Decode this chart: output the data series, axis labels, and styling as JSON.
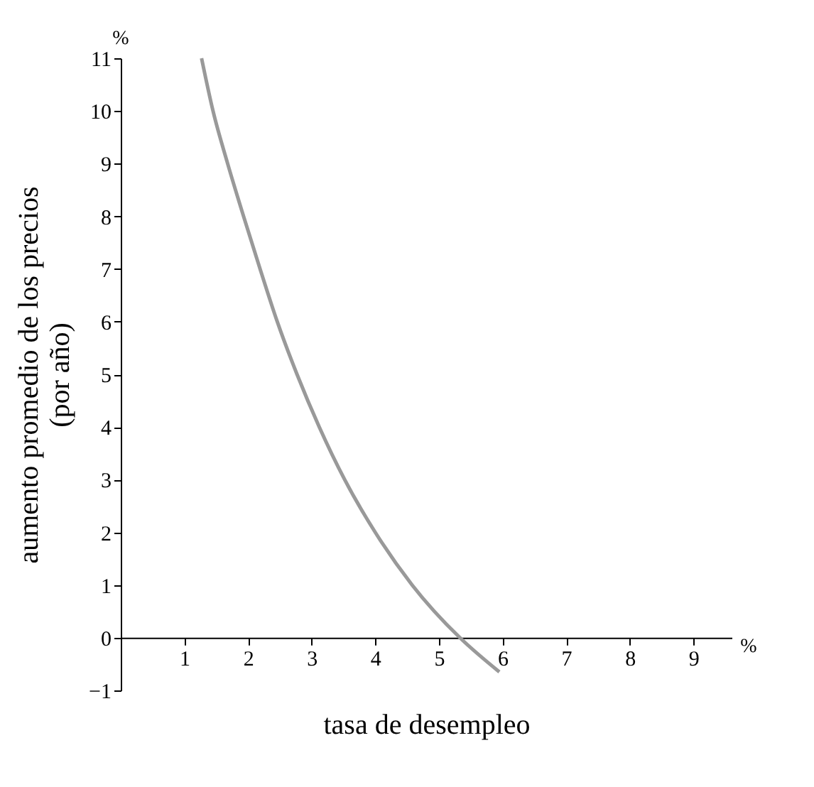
{
  "chart_data": {
    "type": "line",
    "xlabel": "tasa de desempleo",
    "ylabel": "aumento promedio de los precios\n(por año)",
    "annotations": [
      "%",
      "%"
    ],
    "series": [
      {
        "color": "#999999",
        "x": [
          1.27,
          1.45,
          1.68,
          1.93,
          2.19,
          2.46,
          2.77,
          3.12,
          3.52,
          4.0,
          4.58,
          5.33,
          5.95
        ],
        "values": [
          11,
          10,
          9,
          8,
          7,
          6,
          5,
          4,
          3,
          2,
          1,
          0,
          -0.65
        ]
      }
    ],
    "xlim": [
      0,
      9.6
    ],
    "xticks": [
      1,
      2,
      3,
      4,
      5,
      6,
      7,
      8,
      9
    ],
    "ylim": [
      -1,
      11
    ],
    "yticks": [
      -1,
      0,
      1,
      2,
      3,
      4,
      5,
      6,
      7,
      8,
      9,
      10,
      11
    ]
  }
}
